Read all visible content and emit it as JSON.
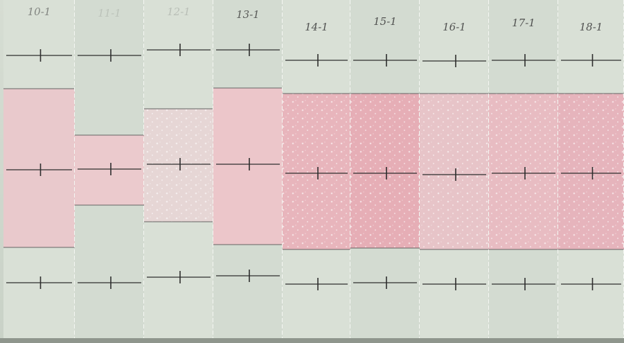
{
  "strips": [
    {
      "label": "10-1"
    },
    {
      "label": "11-1"
    },
    {
      "label": "12-1"
    },
    {
      "label": "13-1"
    },
    {
      "label": "14-1"
    },
    {
      "label": "15-1"
    },
    {
      "label": "16-1"
    },
    {
      "label": "17-1"
    },
    {
      "label": "18-1"
    }
  ]
}
